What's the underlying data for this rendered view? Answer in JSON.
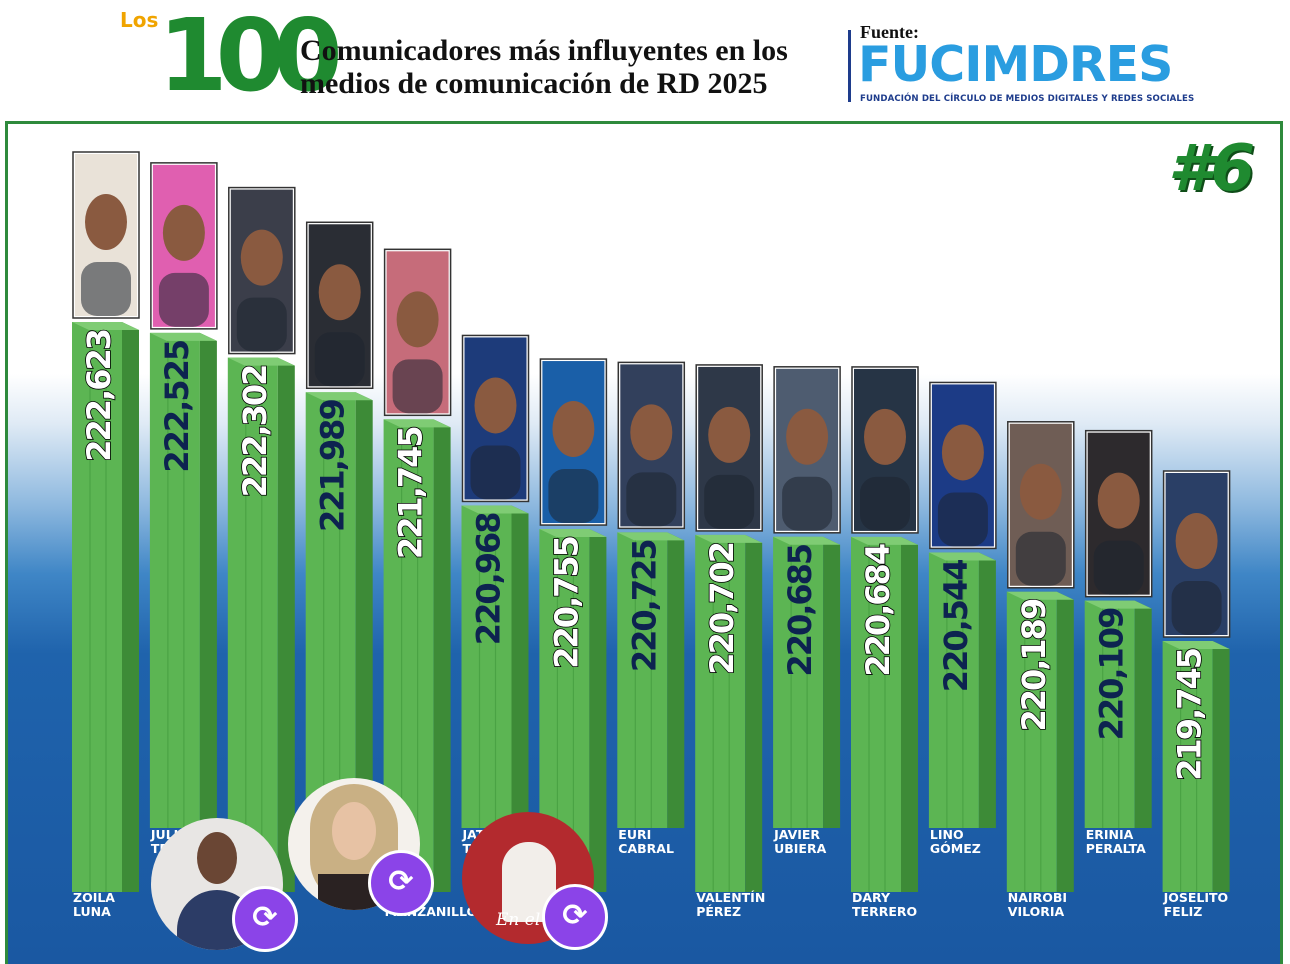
{
  "header": {
    "los": "Los",
    "logo_number": "100",
    "title_line1": "Comunicadores más influyentes en los",
    "title_line2": "medios de comunicación de RD 2025",
    "source_label": "Fuente:",
    "source_name": "FUCIMDRES",
    "source_full": "FUNDACIÓN DEL CÍRCULO DE MEDIOS DIGITALES Y REDES SOCIALES"
  },
  "rank_label": "#6",
  "colors": {
    "bar_front": "#5cb553",
    "bar_side": "#3d8b37",
    "bar_top": "#7fcc74",
    "value_text_white": "#ffffff",
    "value_text_navy": "#0d2350",
    "value_outline": "#000000",
    "accent_green": "#1f8a30",
    "brand_blue": "#2a9de0",
    "repost_purple": "#8b44e8"
  },
  "chart_data": {
    "type": "bar",
    "title": "Comunicadores más influyentes en los medios de comunicación de RD 2025",
    "categories": [
      [
        "ZOILA",
        "LUNA"
      ],
      [
        "JULISSA",
        "TEJADA"
      ],
      [
        "",
        ""
      ],
      [
        "",
        ""
      ],
      [
        "",
        "MANZANILLO"
      ],
      [
        "JATNNA",
        "TAVAREZ"
      ],
      [
        "",
        ""
      ],
      [
        "EURI",
        "CABRAL"
      ],
      [
        "VALENTÍN",
        "PÉREZ"
      ],
      [
        "JAVIER",
        "UBIERA"
      ],
      [
        "DARY",
        "TERRERO"
      ],
      [
        "LINO",
        "GÓMEZ"
      ],
      [
        "NAIROBI",
        "VILORIA"
      ],
      [
        "ERINIA",
        "PERALTA"
      ],
      [
        "JOSELITO",
        "FELIZ"
      ]
    ],
    "value_labels": [
      "222,623",
      "222,525",
      "222,302",
      "221,989",
      "221,745",
      "220,968",
      "220,755",
      "220,725",
      "220,702",
      "220,685",
      "220,684",
      "220,544",
      "220,189",
      "220,109",
      "219,745"
    ],
    "values": [
      222623,
      222525,
      222302,
      221989,
      221745,
      220968,
      220755,
      220725,
      220702,
      220685,
      220684,
      220544,
      220189,
      220109,
      219745
    ],
    "label_styles": [
      "white",
      "navy",
      "white",
      "navy",
      "white",
      "navy",
      "white",
      "navy",
      "white",
      "navy",
      "white",
      "navy",
      "white",
      "navy",
      "white"
    ],
    "label_rows": [
      "low",
      "high",
      "low",
      "high",
      "low",
      "high",
      "low",
      "high",
      "low",
      "high",
      "low",
      "high",
      "low",
      "high",
      "low"
    ],
    "portrait_colors": [
      "#e9e2d8",
      "#e05fb0",
      "#3b3e4a",
      "#2a2d34",
      "#c66c7a",
      "#1d3b7a",
      "#1a5fa8",
      "#32405c",
      "#2e3848",
      "#4e5c70",
      "#263445",
      "#1c3b86",
      "#6f5d55",
      "#2d2a2d",
      "#2a3f66"
    ],
    "legend": "none",
    "grid": false,
    "xlabel": "",
    "ylabel": ""
  },
  "overlays": {
    "reposts": [
      {
        "name": "repost-avatar-man-suit",
        "photo": "#2c3c66"
      },
      {
        "name": "repost-avatar-blonde-woman",
        "photo": "#c9b084"
      },
      {
        "name": "repost-avatar-en-el-live",
        "photo": "#b32a2e",
        "caption": "En el li"
      }
    ],
    "repost_icon": "repost-arrows-icon"
  }
}
